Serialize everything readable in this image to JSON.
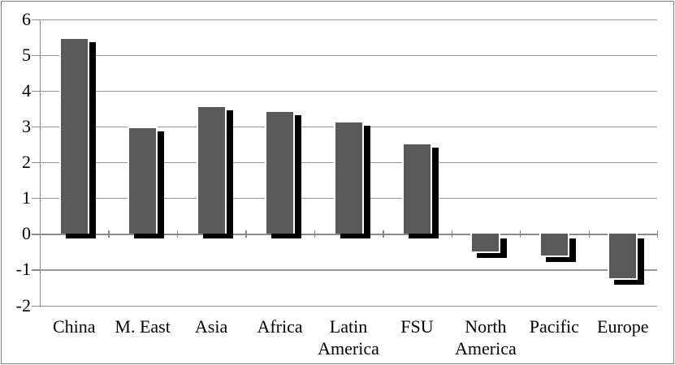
{
  "chart_data": {
    "type": "bar",
    "title": "",
    "xlabel": "",
    "ylabel": "",
    "categories": [
      "China",
      "M. East",
      "Asia",
      "Africa",
      "Latin America",
      "FSU",
      "North America",
      "Pacific",
      "Europe"
    ],
    "values": [
      5.45,
      2.95,
      3.55,
      3.4,
      3.1,
      2.5,
      -0.5,
      -0.6,
      -1.25
    ],
    "ylim": [
      -2,
      6
    ],
    "yticks": [
      6,
      5,
      4,
      3,
      2,
      1,
      0,
      -1,
      -2
    ],
    "grid": true,
    "legend": false,
    "colors": {
      "bar_fill": "#595959",
      "bar_outline": "#ffffff",
      "bar_shadow": "#000000",
      "gridline": "#989898",
      "axis": "#8a8a8a",
      "text": "#000000",
      "chart_border": "#7f7f7f",
      "background": "#ffffff"
    }
  }
}
